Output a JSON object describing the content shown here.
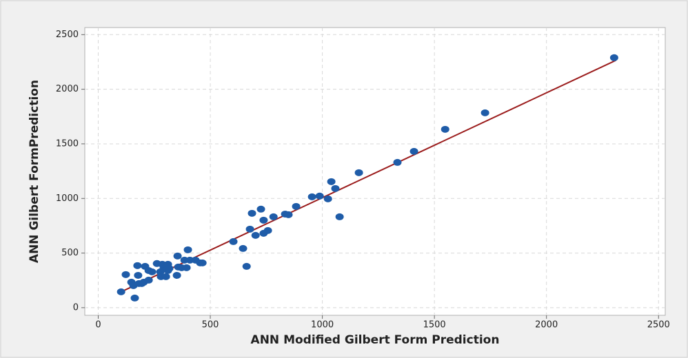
{
  "chart_data": {
    "type": "scatter",
    "x_label": "ANN Modified Gilbert Form Prediction",
    "y_label": "ANN Gilbert FormPrediction",
    "xlim": [
      -60,
      2530
    ],
    "ylim": [
      -70,
      2565
    ],
    "xticks": [
      0,
      500,
      1000,
      1500,
      2000,
      2500
    ],
    "yticks": [
      0,
      500,
      1000,
      1500,
      2000,
      2500
    ],
    "grid": true,
    "color": "#1f5ca8",
    "x": [
      102,
      123,
      148,
      163,
      157,
      175,
      178,
      182,
      194,
      209,
      203,
      225,
      225,
      240,
      262,
      277,
      280,
      292,
      286,
      302,
      311,
      311,
      317,
      354,
      351,
      357,
      372,
      385,
      394,
      400,
      409,
      434,
      455,
      465,
      603,
      646,
      662,
      677,
      686,
      702,
      726,
      738,
      738,
      757,
      782,
      834,
      849,
      883,
      954,
      988,
      1025,
      1040,
      1058,
      1077,
      1163,
      1335,
      1409,
      1548,
      1726,
      2302
    ],
    "values": [
      145,
      303,
      233,
      88,
      202,
      385,
      296,
      221,
      221,
      378,
      233,
      252,
      340,
      328,
      404,
      328,
      284,
      359,
      397,
      284,
      340,
      397,
      359,
      473,
      296,
      372,
      366,
      435,
      366,
      530,
      435,
      435,
      410,
      410,
      605,
      542,
      378,
      719,
      864,
      662,
      902,
      801,
      681,
      706,
      832,
      857,
      851,
      927,
      1015,
      1022,
      996,
      1154,
      1091,
      832,
      1236,
      1330,
      1431,
      1633,
      1784,
      2289
    ],
    "fit_line": {
      "color": "#9b1c1c",
      "x": [
        100,
        2310
      ],
      "y": [
        143,
        2265
      ]
    }
  }
}
